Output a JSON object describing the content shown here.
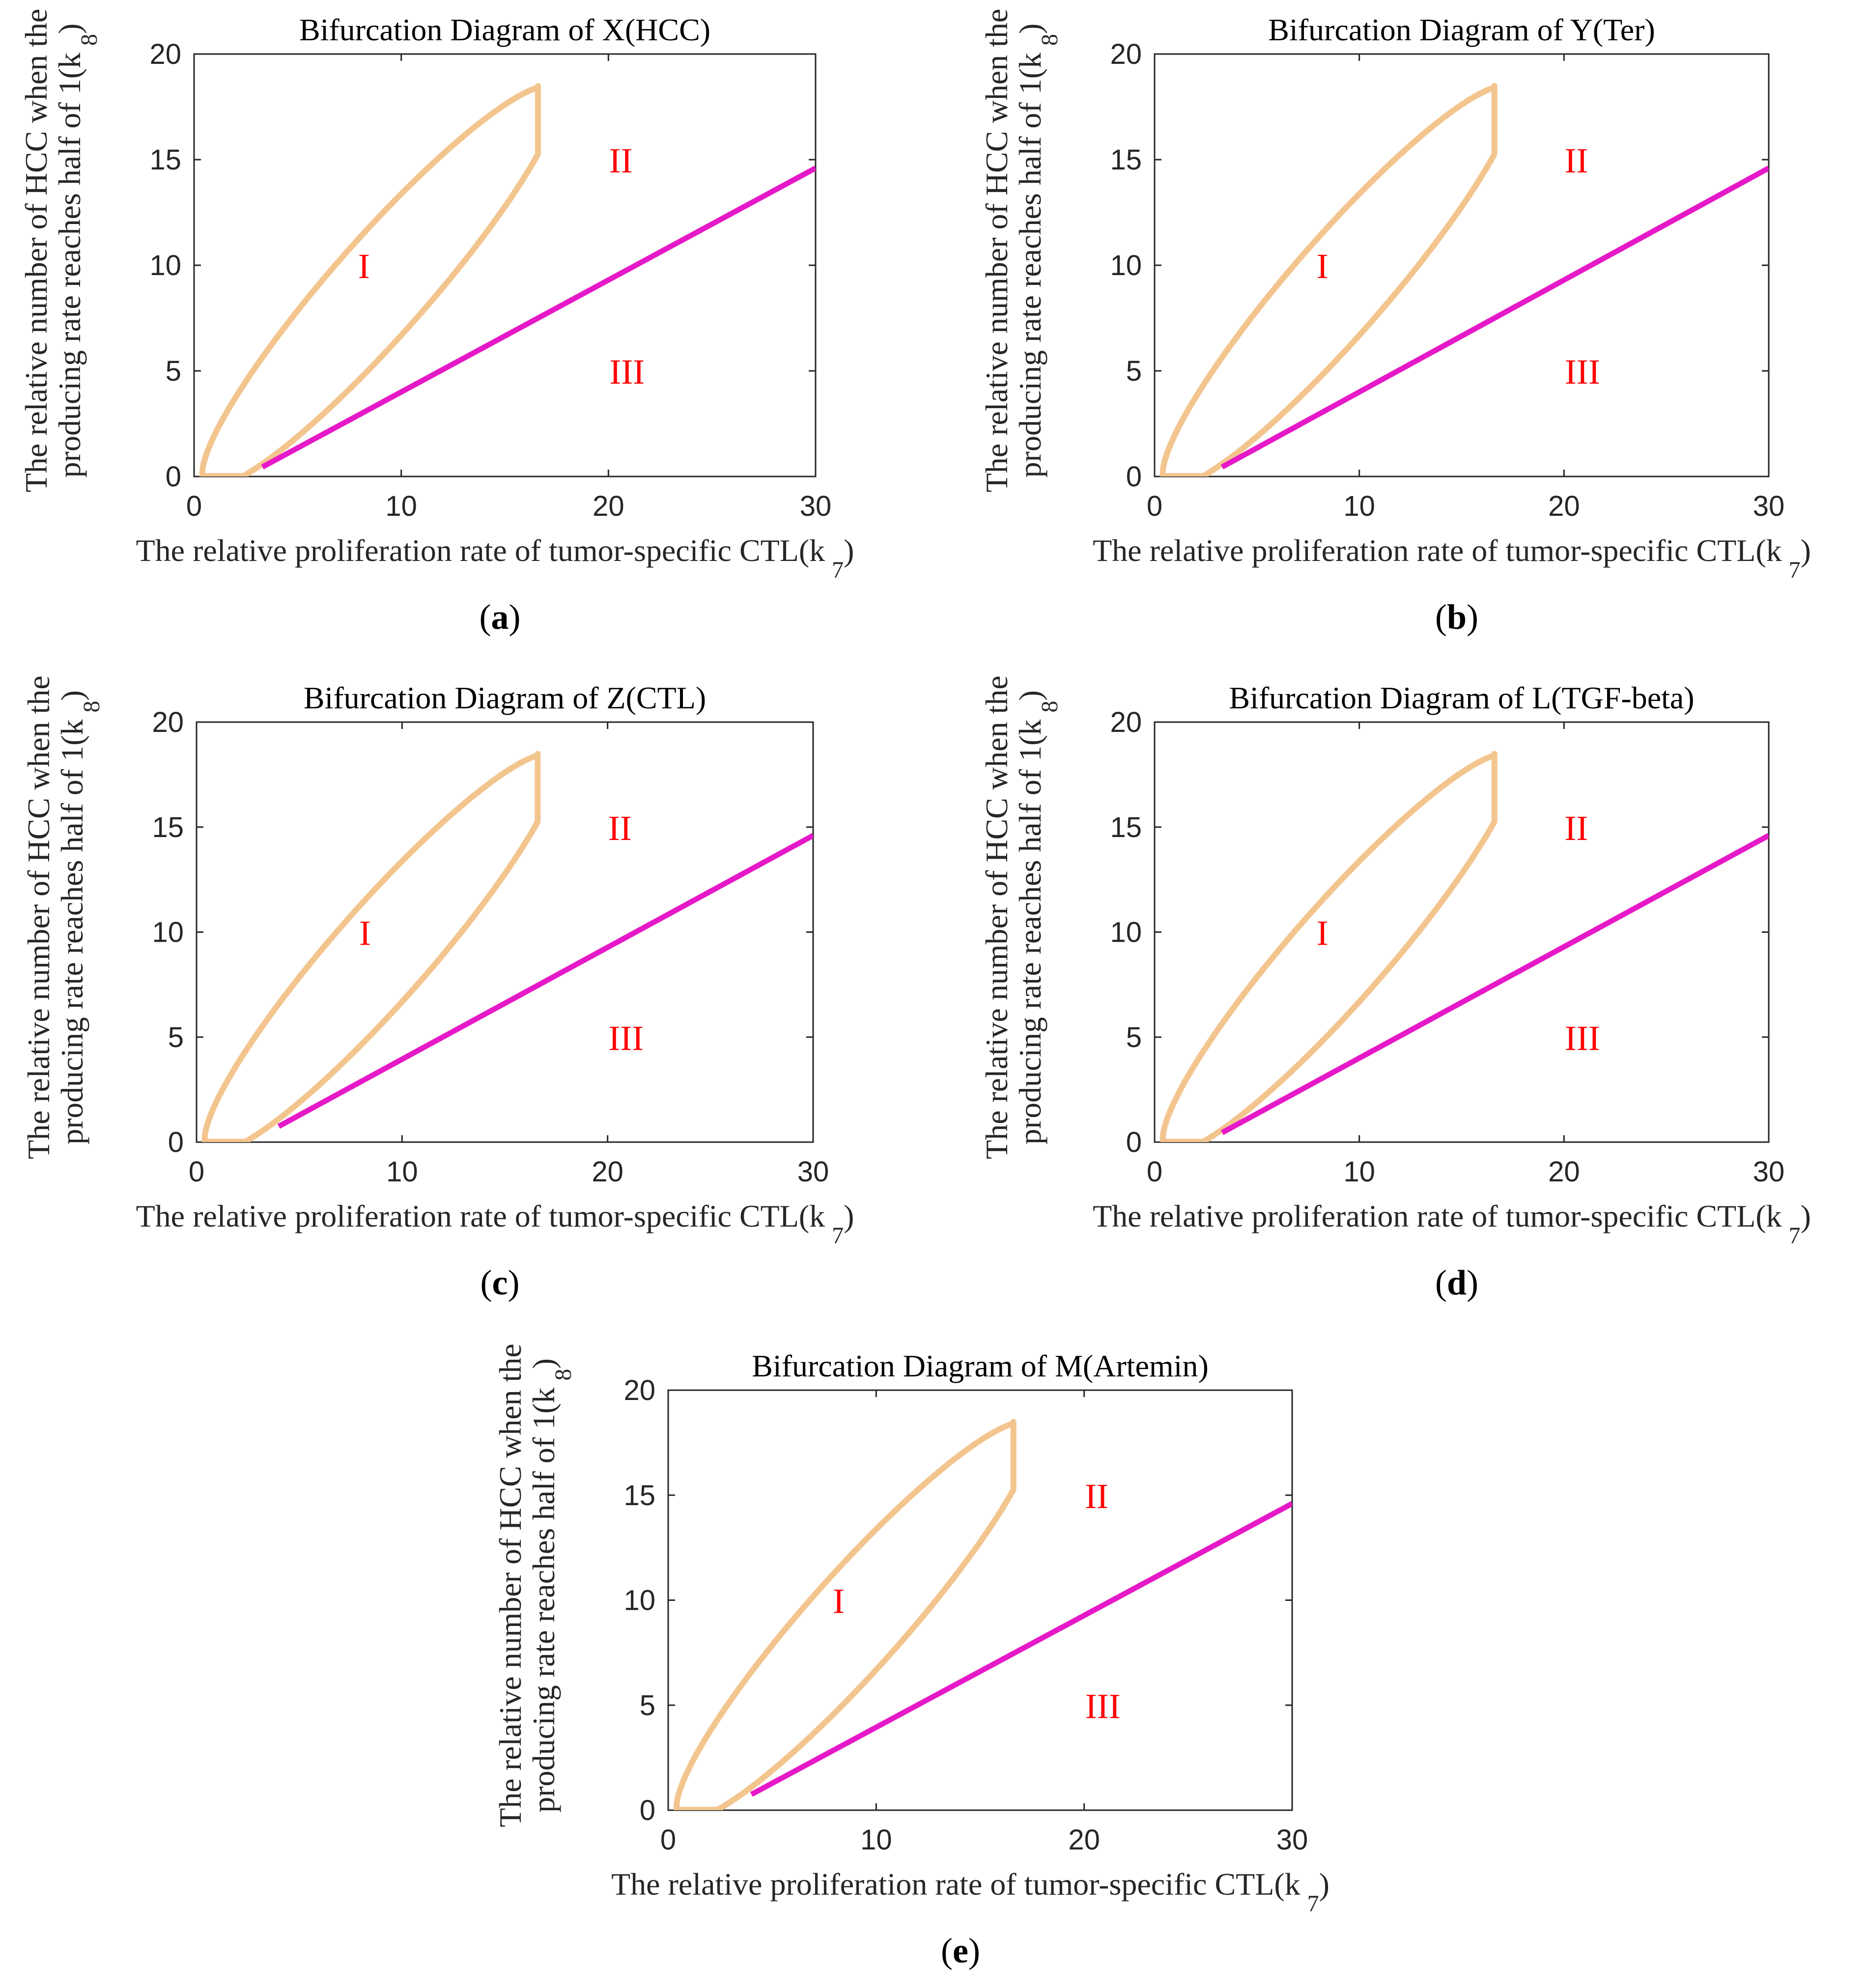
{
  "colors": {
    "ellipse": "#f3c58e",
    "line": "#e619c8",
    "region_labels": "#ff0000",
    "axes": "#262626"
  },
  "chart_data": [
    {
      "type": "line",
      "panel": "(a)",
      "panel_letter": "a",
      "title": "Bifurcation Diagram of X(HCC)",
      "xlabel": "The relative proliferation rate of tumor-specific CTL(k",
      "xlabel_sub": "7",
      "xlabel_close": ")",
      "ylabel_line1": "The relative number of HCC when the",
      "ylabel_line2": "producing rate reaches half of 1(k",
      "ylabel_sub": "8",
      "ylabel_close": ")",
      "xlim": [
        0,
        30
      ],
      "ylim": [
        0,
        20
      ],
      "xticks": [
        0,
        10,
        20,
        30
      ],
      "yticks": [
        0,
        5,
        10,
        15,
        20
      ],
      "grid": false,
      "regions": [
        {
          "label": "I",
          "x": 8.2,
          "y": 10
        },
        {
          "label": "II",
          "x": 20.6,
          "y": 15
        },
        {
          "label": "III",
          "x": 20.9,
          "y": 5
        }
      ],
      "ellipse": {
        "cx": 9.0,
        "cy": 9.0,
        "semi_major": 12.6,
        "semi_minor": 2.3,
        "angle_deg": 48,
        "gap_x": 16.6
      },
      "line_segment": {
        "x": [
          3.3,
          30
        ],
        "y": [
          0.45,
          14.6
        ]
      }
    },
    {
      "type": "line",
      "panel": "(b)",
      "panel_letter": "b",
      "title": "Bifurcation Diagram of Y(Ter)",
      "xlabel": "The relative proliferation rate of tumor-specific CTL(k",
      "xlabel_sub": "7",
      "xlabel_close": ")",
      "ylabel_line1": "The relative number of HCC when the",
      "ylabel_line2": "producing rate reaches half of 1(k",
      "ylabel_sub": "8",
      "ylabel_close": ")",
      "xlim": [
        0,
        30
      ],
      "ylim": [
        0,
        20
      ],
      "xticks": [
        0,
        10,
        20,
        30
      ],
      "yticks": [
        0,
        5,
        10,
        15,
        20
      ],
      "grid": false,
      "regions": [
        {
          "label": "I",
          "x": 8.2,
          "y": 10
        },
        {
          "label": "II",
          "x": 20.6,
          "y": 15
        },
        {
          "label": "III",
          "x": 20.9,
          "y": 5
        }
      ],
      "ellipse": {
        "cx": 9.0,
        "cy": 9.0,
        "semi_major": 12.6,
        "semi_minor": 2.3,
        "angle_deg": 48,
        "gap_x": 16.6
      },
      "line_segment": {
        "x": [
          3.3,
          30
        ],
        "y": [
          0.45,
          14.6
        ]
      }
    },
    {
      "type": "line",
      "panel": "(c)",
      "panel_letter": "c",
      "title": "Bifurcation Diagram of Z(CTL)",
      "xlabel": "The relative proliferation rate of tumor-specific CTL(k",
      "xlabel_sub": "7",
      "xlabel_close": ")",
      "ylabel_line1": "The relative number of HCC when the",
      "ylabel_line2": "producing rate reaches half of 1(k",
      "ylabel_sub": "8",
      "ylabel_close": ")",
      "xlim": [
        0,
        30
      ],
      "ylim": [
        0,
        20
      ],
      "xticks": [
        0,
        10,
        20,
        30
      ],
      "yticks": [
        0,
        5,
        10,
        15,
        20
      ],
      "grid": false,
      "regions": [
        {
          "label": "I",
          "x": 8.2,
          "y": 10
        },
        {
          "label": "II",
          "x": 20.6,
          "y": 15
        },
        {
          "label": "III",
          "x": 20.9,
          "y": 5
        }
      ],
      "ellipse": {
        "cx": 9.0,
        "cy": 9.0,
        "semi_major": 12.6,
        "semi_minor": 2.3,
        "angle_deg": 48,
        "gap_x": 16.6
      },
      "line_segment": {
        "x": [
          4.0,
          30
        ],
        "y": [
          0.75,
          14.6
        ]
      }
    },
    {
      "type": "line",
      "panel": "(d)",
      "panel_letter": "d",
      "title": "Bifurcation Diagram of L(TGF-beta)",
      "xlabel": "The relative proliferation rate of tumor-specific CTL(k",
      "xlabel_sub": "7",
      "xlabel_close": ")",
      "ylabel_line1": "The relative number of HCC when the",
      "ylabel_line2": "producing rate reaches half of 1(k",
      "ylabel_sub": "8",
      "ylabel_close": ")",
      "xlim": [
        0,
        30
      ],
      "ylim": [
        0,
        20
      ],
      "xticks": [
        0,
        10,
        20,
        30
      ],
      "yticks": [
        0,
        5,
        10,
        15,
        20
      ],
      "grid": false,
      "regions": [
        {
          "label": "I",
          "x": 8.2,
          "y": 10
        },
        {
          "label": "II",
          "x": 20.6,
          "y": 15
        },
        {
          "label": "III",
          "x": 20.9,
          "y": 5
        }
      ],
      "ellipse": {
        "cx": 9.0,
        "cy": 9.0,
        "semi_major": 12.6,
        "semi_minor": 2.3,
        "angle_deg": 48,
        "gap_x": 16.6
      },
      "line_segment": {
        "x": [
          3.3,
          30
        ],
        "y": [
          0.45,
          14.6
        ]
      }
    },
    {
      "type": "line",
      "panel": "(e)",
      "panel_letter": "e",
      "title": "Bifurcation Diagram of M(Artemin)",
      "xlabel": "The relative proliferation rate of tumor-specific CTL(k",
      "xlabel_sub": "7",
      "xlabel_close": ")",
      "ylabel_line1": "The relative number of HCC when the",
      "ylabel_line2": "producing rate reaches half of 1(k",
      "ylabel_sub": "8",
      "ylabel_close": ")",
      "xlim": [
        0,
        30
      ],
      "ylim": [
        0,
        20
      ],
      "xticks": [
        0,
        10,
        20,
        30
      ],
      "yticks": [
        0,
        5,
        10,
        15,
        20
      ],
      "grid": false,
      "regions": [
        {
          "label": "I",
          "x": 8.2,
          "y": 10
        },
        {
          "label": "II",
          "x": 20.6,
          "y": 15
        },
        {
          "label": "III",
          "x": 20.9,
          "y": 5
        }
      ],
      "ellipse": {
        "cx": 9.0,
        "cy": 9.0,
        "semi_major": 12.6,
        "semi_minor": 2.3,
        "angle_deg": 48,
        "gap_x": 16.6
      },
      "line_segment": {
        "x": [
          4.0,
          30
        ],
        "y": [
          0.75,
          14.6
        ]
      }
    }
  ]
}
